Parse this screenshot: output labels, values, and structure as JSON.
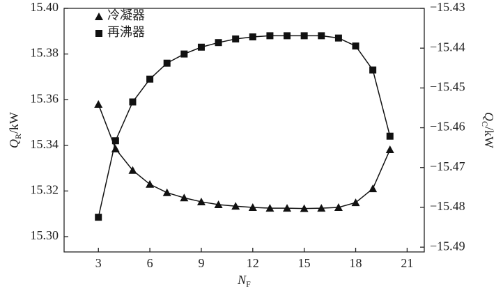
{
  "chart_data": {
    "type": "line",
    "x_label": {
      "main": "N",
      "sub": "F"
    },
    "y_label": {
      "main": "Q",
      "sub": "R",
      "unit": "/kW"
    },
    "y2_label": {
      "main": "Q",
      "sub": "C",
      "unit": "/kW"
    },
    "x": [
      3,
      4,
      5,
      6,
      7,
      8,
      9,
      10,
      11,
      12,
      13,
      14,
      15,
      16,
      17,
      18,
      19,
      20
    ],
    "xlim": [
      1,
      22
    ],
    "xticks": [
      3,
      6,
      9,
      12,
      15,
      18,
      21
    ],
    "ylim": [
      15.2933,
      15.4
    ],
    "yticks": [
      {
        "value": 15.3,
        "label": "15.30"
      },
      15.32,
      15.34,
      15.36,
      15.38,
      {
        "value": 15.4,
        "label": "15.40"
      }
    ],
    "y2lim": [
      -15.4912,
      -15.43
    ],
    "y2ticks": [
      {
        "value": -15.49,
        "label": "−15.49"
      },
      {
        "value": -15.48,
        "label": "−15.48"
      },
      {
        "value": -15.47,
        "label": "−15.47"
      },
      {
        "value": -15.46,
        "label": "−15.46"
      },
      {
        "value": -15.45,
        "label": "−15.45"
      },
      {
        "value": -15.44,
        "label": "−15.44"
      },
      {
        "value": -15.43,
        "label": "−15.43"
      }
    ],
    "legend": "top-left",
    "series": [
      {
        "name": "冷凝器",
        "color": "#111111",
        "marker": "triangle",
        "axis": "y2",
        "values": [
          -15.4541,
          -15.4653,
          -15.4707,
          -15.4742,
          -15.4763,
          -15.4776,
          -15.4786,
          -15.4793,
          -15.4797,
          -15.48,
          -15.4802,
          -15.4802,
          -15.4803,
          -15.4802,
          -15.48,
          -15.4788,
          -15.4753,
          -15.4655
        ]
      },
      {
        "name": "再沸器",
        "color": "#111111",
        "marker": "square",
        "values": [
          15.3085,
          15.342,
          15.359,
          15.369,
          15.376,
          15.38,
          15.383,
          15.385,
          15.3866,
          15.3875,
          15.388,
          15.388,
          15.388,
          15.388,
          15.387,
          15.3835,
          15.373,
          15.344
        ]
      }
    ]
  }
}
